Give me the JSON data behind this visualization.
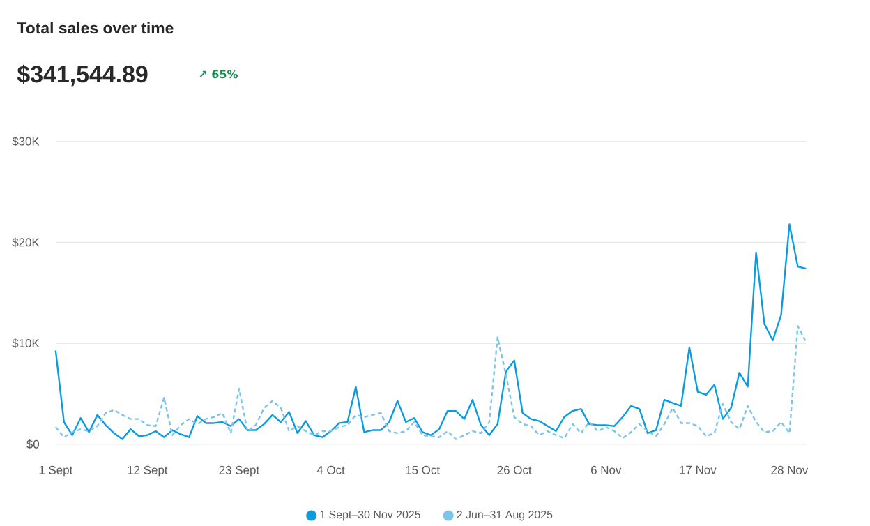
{
  "chart_data": {
    "type": "line",
    "title": "Total sales over time",
    "subtitle": "$341,544.89",
    "annotations": [
      "↗ 65%"
    ],
    "categories": [
      "1 Sept",
      null,
      null,
      null,
      null,
      null,
      null,
      null,
      null,
      null,
      null,
      "12 Sept",
      null,
      null,
      null,
      null,
      null,
      null,
      null,
      null,
      null,
      null,
      "23 Sept",
      null,
      null,
      null,
      null,
      null,
      null,
      null,
      null,
      null,
      null,
      "4 Oct",
      null,
      null,
      null,
      null,
      null,
      null,
      null,
      null,
      null,
      null,
      "15 Oct",
      null,
      null,
      null,
      null,
      null,
      null,
      null,
      null,
      null,
      null,
      "26 Oct",
      null,
      null,
      null,
      null,
      null,
      null,
      null,
      null,
      null,
      null,
      "6 Nov",
      null,
      null,
      null,
      null,
      null,
      null,
      null,
      null,
      null,
      null,
      "17 Nov",
      null,
      null,
      null,
      null,
      null,
      null,
      null,
      null,
      null,
      null,
      "28 Nov",
      null,
      null
    ],
    "series": [
      {
        "name": "1 Sept–30 Nov 2025",
        "color": "#0b9be0",
        "line_style": "solid",
        "values": [
          9300,
          2200,
          900,
          2600,
          1200,
          2900,
          1900,
          1100,
          500,
          1500,
          800,
          900,
          1300,
          700,
          1400,
          1000,
          700,
          2800,
          2100,
          2100,
          2200,
          1800,
          2500,
          1400,
          1400,
          2000,
          2900,
          2200,
          3200,
          1100,
          2300,
          900,
          700,
          1300,
          2100,
          2200,
          5700,
          1200,
          1400,
          1400,
          2200,
          4300,
          2200,
          2600,
          1200,
          900,
          1500,
          3300,
          3300,
          2500,
          4400,
          1900,
          900,
          2000,
          7200,
          8300,
          3100,
          2500,
          2300,
          1800,
          1300,
          2700,
          3300,
          3500,
          2000,
          1900,
          1900,
          1800,
          2700,
          3800,
          3500,
          1100,
          1400,
          4400,
          4100,
          3800,
          9600,
          5200,
          4900,
          5900,
          2500,
          3600,
          7100,
          5700,
          19000,
          11900,
          10300,
          12800,
          21800,
          17600,
          17400
        ]
      },
      {
        "name": "2 Jun–31 Aug 2025",
        "color": "#7cc4ea",
        "line_style": "dashed",
        "values": [
          1700,
          700,
          1200,
          1500,
          1300,
          1800,
          3100,
          3400,
          2900,
          2500,
          2500,
          1900,
          1800,
          4600,
          900,
          1900,
          2500,
          2000,
          2500,
          2700,
          3100,
          1100,
          5500,
          1300,
          1900,
          3600,
          4300,
          3600,
          1300,
          1800,
          1300,
          900,
          1300,
          1300,
          1700,
          1900,
          2900,
          2700,
          2900,
          3100,
          1300,
          1100,
          1300,
          2200,
          900,
          800,
          700,
          1300,
          500,
          900,
          1300,
          1100,
          2200,
          10600,
          6900,
          2700,
          2000,
          1800,
          900,
          1300,
          900,
          600,
          2000,
          1100,
          2200,
          1300,
          1700,
          1300,
          600,
          1200,
          2000,
          1300,
          800,
          2000,
          3600,
          2100,
          2100,
          1800,
          800,
          1100,
          4000,
          2200,
          1500,
          3800,
          2200,
          1200,
          1300,
          2200,
          1100,
          11700,
          10100
        ]
      }
    ],
    "ylim": [
      0,
      30000
    ],
    "yticks": [
      {
        "value": 0,
        "label": "$0"
      },
      {
        "value": 10000,
        "label": "$10K"
      },
      {
        "value": 20000,
        "label": "$20K"
      },
      {
        "value": 30000,
        "label": "$30K"
      }
    ],
    "grid": "y",
    "legend": "bottom"
  }
}
